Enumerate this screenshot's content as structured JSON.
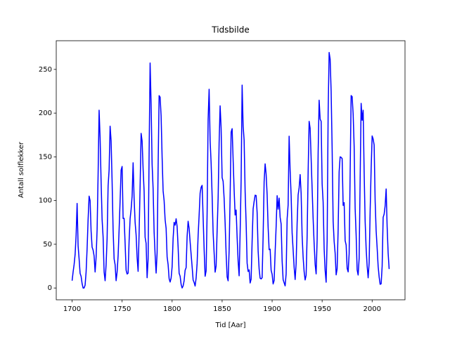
{
  "chart_data": {
    "type": "line",
    "title": "Tidsbilde",
    "x_label": "Tid [Aar]",
    "y_label": "Antall solflekker",
    "color": "#0000ff",
    "x": [
      1700,
      1701,
      1702,
      1703,
      1704,
      1705,
      1706,
      1707,
      1708,
      1709,
      1710,
      1711,
      1712,
      1713,
      1714,
      1715,
      1716,
      1717,
      1718,
      1719,
      1720,
      1721,
      1722,
      1723,
      1724,
      1725,
      1726,
      1727,
      1728,
      1729,
      1730,
      1731,
      1732,
      1733,
      1734,
      1735,
      1736,
      1737,
      1738,
      1739,
      1740,
      1741,
      1742,
      1743,
      1744,
      1745,
      1746,
      1747,
      1748,
      1749,
      1750,
      1751,
      1752,
      1753,
      1754,
      1755,
      1756,
      1757,
      1758,
      1759,
      1760,
      1761,
      1762,
      1763,
      1764,
      1765,
      1766,
      1767,
      1768,
      1769,
      1770,
      1771,
      1772,
      1773,
      1774,
      1775,
      1776,
      1777,
      1778,
      1779,
      1780,
      1781,
      1782,
      1783,
      1784,
      1785,
      1786,
      1787,
      1788,
      1789,
      1790,
      1791,
      1792,
      1793,
      1794,
      1795,
      1796,
      1797,
      1798,
      1799,
      1800,
      1801,
      1802,
      1803,
      1804,
      1805,
      1806,
      1807,
      1808,
      1809,
      1810,
      1811,
      1812,
      1813,
      1814,
      1815,
      1816,
      1817,
      1818,
      1819,
      1820,
      1821,
      1822,
      1823,
      1824,
      1825,
      1826,
      1827,
      1828,
      1829,
      1830,
      1831,
      1832,
      1833,
      1834,
      1835,
      1836,
      1837,
      1838,
      1839,
      1840,
      1841,
      1842,
      1843,
      1844,
      1845,
      1846,
      1847,
      1848,
      1849,
      1850,
      1851,
      1852,
      1853,
      1854,
      1855,
      1856,
      1857,
      1858,
      1859,
      1860,
      1861,
      1862,
      1863,
      1864,
      1865,
      1866,
      1867,
      1868,
      1869,
      1870,
      1871,
      1872,
      1873,
      1874,
      1875,
      1876,
      1877,
      1878,
      1879,
      1880,
      1881,
      1882,
      1883,
      1884,
      1885,
      1886,
      1887,
      1888,
      1889,
      1890,
      1891,
      1892,
      1893,
      1894,
      1895,
      1896,
      1897,
      1898,
      1899,
      1900,
      1901,
      1902,
      1903,
      1904,
      1905,
      1906,
      1907,
      1908,
      1909,
      1910,
      1911,
      1912,
      1913,
      1914,
      1915,
      1916,
      1917,
      1918,
      1919,
      1920,
      1921,
      1922,
      1923,
      1924,
      1925,
      1926,
      1927,
      1928,
      1929,
      1930,
      1931,
      1932,
      1933,
      1934,
      1935,
      1936,
      1937,
      1938,
      1939,
      1940,
      1941,
      1942,
      1943,
      1944,
      1945,
      1946,
      1947,
      1948,
      1949,
      1950,
      1951,
      1952,
      1953,
      1954,
      1955,
      1956,
      1957,
      1958,
      1959,
      1960,
      1961,
      1962,
      1963,
      1964,
      1965,
      1966,
      1967,
      1968,
      1969,
      1970,
      1971,
      1972,
      1973,
      1974,
      1975,
      1976,
      1977,
      1978,
      1979,
      1980,
      1981,
      1982,
      1983,
      1984,
      1985,
      1986,
      1987,
      1988,
      1989,
      1990,
      1991,
      1992,
      1993,
      1994,
      1995,
      1996,
      1997,
      1998,
      1999,
      2000,
      2001,
      2002,
      2003,
      2004,
      2005,
      2006,
      2007,
      2008,
      2009,
      2010,
      2011,
      2012,
      2013,
      2014,
      2015,
      2016,
      2017
    ],
    "values": [
      8.3,
      18.3,
      26.7,
      38.3,
      60.0,
      96.7,
      48.3,
      33.3,
      16.7,
      13.3,
      5.0,
      0.0,
      0.0,
      3.3,
      18.3,
      45.0,
      78.3,
      105.0,
      100.0,
      65.0,
      46.7,
      43.3,
      36.7,
      18.3,
      35.0,
      66.7,
      130.0,
      203.3,
      171.7,
      121.7,
      78.3,
      58.3,
      18.3,
      8.3,
      26.7,
      56.7,
      116.7,
      135.0,
      185.0,
      168.3,
      121.7,
      66.7,
      33.3,
      26.7,
      8.3,
      18.3,
      36.7,
      66.7,
      100.0,
      134.8,
      139.0,
      79.5,
      79.7,
      51.2,
      20.3,
      16.0,
      17.0,
      54.0,
      79.3,
      90.0,
      104.8,
      143.2,
      102.0,
      75.2,
      60.7,
      34.8,
      19.0,
      63.0,
      116.3,
      176.8,
      168.0,
      136.0,
      110.8,
      58.0,
      51.0,
      11.7,
      33.0,
      154.2,
      257.3,
      209.8,
      141.3,
      113.5,
      64.2,
      38.0,
      17.0,
      40.2,
      138.2,
      220.0,
      218.2,
      196.8,
      149.8,
      111.0,
      100.0,
      78.2,
      68.3,
      35.5,
      26.7,
      10.7,
      6.8,
      11.3,
      24.2,
      56.7,
      75.0,
      71.8,
      79.2,
      70.3,
      46.8,
      16.8,
      13.5,
      4.2,
      0.0,
      2.3,
      8.3,
      20.3,
      23.2,
      59.0,
      76.3,
      68.3,
      52.9,
      38.5,
      24.2,
      9.2,
      6.3,
      2.2,
      11.4,
      28.2,
      59.9,
      83.0,
      108.5,
      115.2,
      117.4,
      80.8,
      44.3,
      13.4,
      19.5,
      85.8,
      192.7,
      227.3,
      168.7,
      143.0,
      105.5,
      63.3,
      40.3,
      18.1,
      25.1,
      65.8,
      102.7,
      166.3,
      208.3,
      182.5,
      126.3,
      122.0,
      102.7,
      74.1,
      39.0,
      12.7,
      8.2,
      43.4,
      104.4,
      178.3,
      182.2,
      146.6,
      112.1,
      83.5,
      89.2,
      57.8,
      30.7,
      13.9,
      62.8,
      123.6,
      232.0,
      185.3,
      169.2,
      110.1,
      74.5,
      28.3,
      18.9,
      20.7,
      5.7,
      10.0,
      53.7,
      90.5,
      99.0,
      106.1,
      105.8,
      86.3,
      42.4,
      21.8,
      11.2,
      10.4,
      11.8,
      59.5,
      121.7,
      142.0,
      130.0,
      106.6,
      69.4,
      43.8,
      44.4,
      20.2,
      15.7,
      4.6,
      8.5,
      40.8,
      70.1,
      105.5,
      90.1,
      102.8,
      80.9,
      73.2,
      30.9,
      9.5,
      6.0,
      2.4,
      16.1,
      79.0,
      95.0,
      173.6,
      134.6,
      105.7,
      62.7,
      43.5,
      23.7,
      9.7,
      27.9,
      74.0,
      106.5,
      114.7,
      129.7,
      108.2,
      59.4,
      35.1,
      18.6,
      9.2,
      14.6,
      60.2,
      132.8,
      190.6,
      182.6,
      148.0,
      113.0,
      79.2,
      50.8,
      27.1,
      16.1,
      55.3,
      154.3,
      214.7,
      193.0,
      190.7,
      118.9,
      98.3,
      45.0,
      20.1,
      6.6,
      54.2,
      200.7,
      269.3,
      261.7,
      225.1,
      159.0,
      76.4,
      53.4,
      39.9,
      15.0,
      22.0,
      66.8,
      132.9,
      150.0,
      149.4,
      148.0,
      94.4,
      97.6,
      54.1,
      49.2,
      22.5,
      18.4,
      39.3,
      131.0,
      220.1,
      218.9,
      198.9,
      162.4,
      91.0,
      60.5,
      20.6,
      14.8,
      33.9,
      123.0,
      211.1,
      191.8,
      203.3,
      133.0,
      76.1,
      44.9,
      25.1,
      11.6,
      28.9,
      88.3,
      136.3,
      173.9,
      170.4,
      163.6,
      99.3,
      65.3,
      45.8,
      24.7,
      12.6,
      4.2,
      4.8,
      24.9,
      80.8,
      84.5,
      94.0,
      113.3,
      69.8,
      39.8,
      21.7
    ],
    "xlim": [
      1684.15,
      2032.85
    ],
    "xticks": [
      1700,
      1750,
      1800,
      1850,
      1900,
      1950,
      2000
    ],
    "ylim": [
      -13.5,
      282.8
    ],
    "yticks": [
      0,
      50,
      100,
      150,
      200,
      250
    ]
  }
}
